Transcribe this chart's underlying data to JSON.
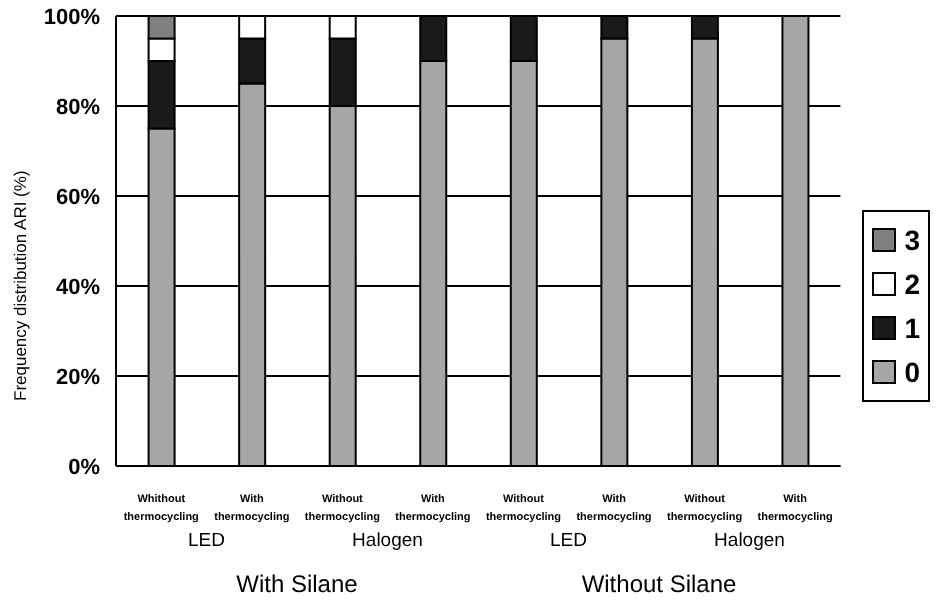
{
  "chart_data": {
    "type": "bar",
    "stacked": true,
    "ylabel": "Frequency distribution ARI (%)",
    "categories": [
      "Whithout thermocycling",
      "With thermocycling",
      "Without thermocycling",
      "With thermocycling",
      "Without thermocycling",
      "With thermocycling",
      "Without thermocycling",
      "With thermocycling"
    ],
    "series": [
      {
        "name": "0",
        "color": "#a6a6a6",
        "values": [
          75,
          85,
          80,
          90,
          90,
          95,
          95,
          100
        ]
      },
      {
        "name": "1",
        "color": "#1a1a1a",
        "values": [
          15,
          10,
          15,
          10,
          10,
          5,
          5,
          0
        ]
      },
      {
        "name": "2",
        "color": "#ffffff",
        "values": [
          5,
          5,
          5,
          0,
          0,
          0,
          0,
          0
        ]
      },
      {
        "name": "3",
        "color": "#808080",
        "values": [
          5,
          0,
          0,
          0,
          0,
          0,
          0,
          0
        ]
      }
    ],
    "ylim": [
      0,
      100
    ],
    "yticks": [
      {
        "value": 0,
        "label": "0%"
      },
      {
        "value": 20,
        "label": "20%"
      },
      {
        "value": 40,
        "label": "40%"
      },
      {
        "value": 60,
        "label": "60%"
      },
      {
        "value": 80,
        "label": "80%"
      },
      {
        "value": 100,
        "label": "100%"
      }
    ],
    "grid": "y",
    "legend": "right",
    "annotations": [
      "LED",
      "Halogen",
      "LED",
      "Halogen",
      "With Silane",
      "Without Silane"
    ]
  }
}
